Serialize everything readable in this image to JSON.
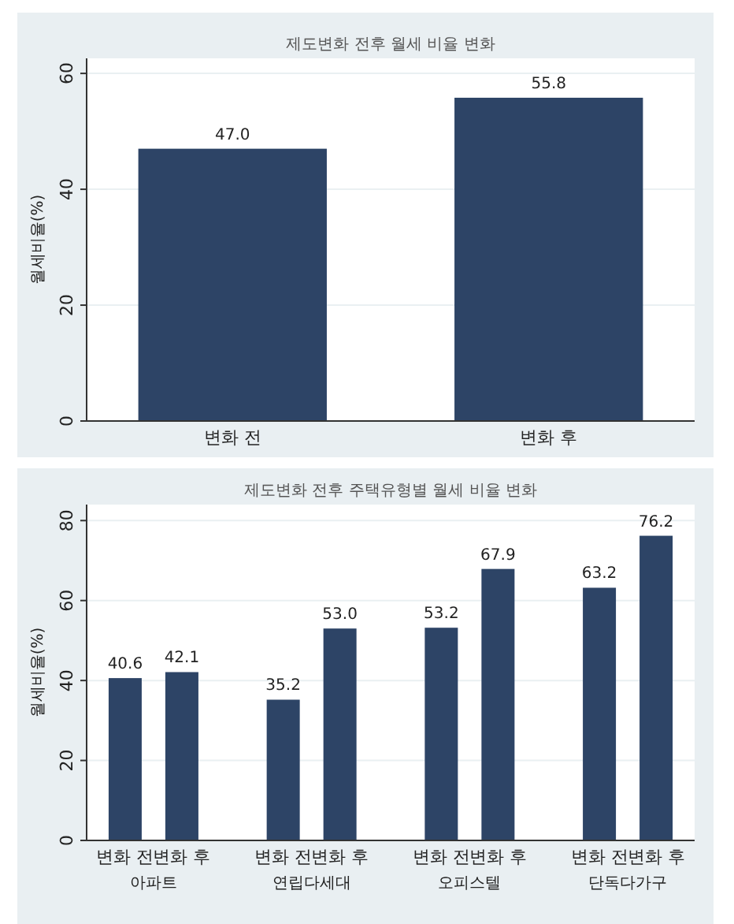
{
  "chart_data": [
    {
      "type": "bar",
      "title": "제도변화 전후 월세 비율 변화",
      "ylabel": "월세비율(%)",
      "categories": [
        "변화 전",
        "변화 후"
      ],
      "values": [
        47.0,
        55.8
      ],
      "value_labels": [
        "47.0",
        "55.8"
      ],
      "color": "#2d4466",
      "ylim": [
        0,
        62.6
      ],
      "yticks": [
        0,
        20,
        40,
        60
      ],
      "grid": "y"
    },
    {
      "type": "bar",
      "title": "제도변화 전후 주택유형별 월세 비율 변화",
      "ylabel": "월세비율(%)",
      "categories": [
        "아파트",
        "연립다세대",
        "오피스텔",
        "단독다가구"
      ],
      "series": [
        {
          "name": "변화 전",
          "color": "#2d4466",
          "values": [
            40.6,
            35.2,
            53.2,
            63.2
          ],
          "value_labels": [
            "40.6",
            "35.2",
            "53.2",
            "63.2"
          ]
        },
        {
          "name": "변화 후",
          "color": "#2d4466",
          "values": [
            42.1,
            53.0,
            67.9,
            76.2
          ],
          "value_labels": [
            "42.1",
            "53.0",
            "67.9",
            "76.2"
          ]
        }
      ],
      "ylim": [
        0,
        84
      ],
      "yticks": [
        0,
        20,
        40,
        60,
        80
      ],
      "grid": "y"
    }
  ]
}
